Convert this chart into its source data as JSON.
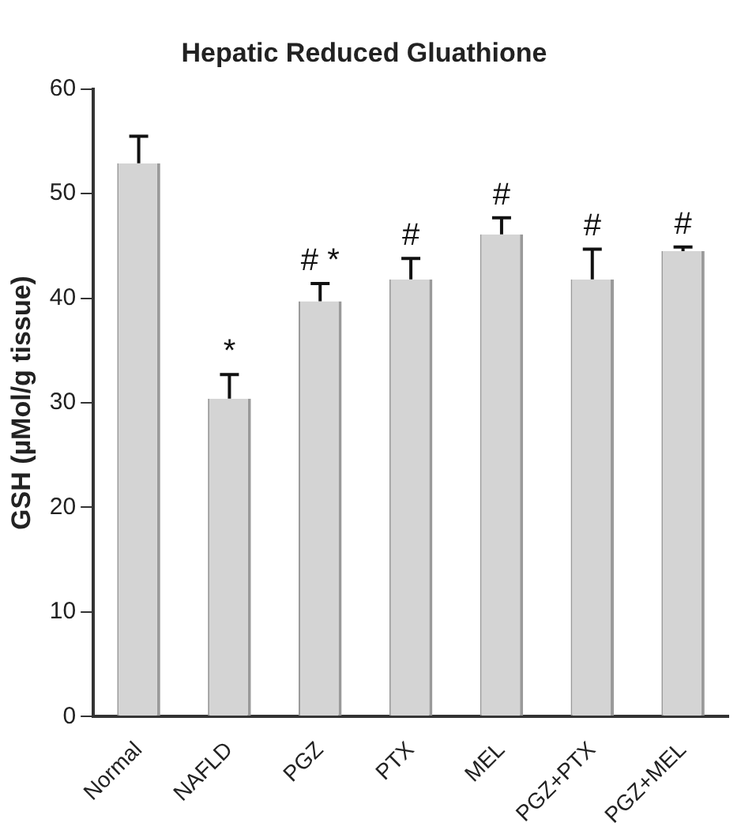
{
  "chart_data": {
    "type": "bar",
    "title": "Hepatic Reduced Gluathione",
    "ylabel": "GSH (µMol/g tissue)",
    "categories": [
      "Normal",
      "NAFLD",
      "PGZ",
      "PTX",
      "MEL",
      "PGZ+PTX",
      "PGZ+MEL"
    ],
    "values": [
      52.9,
      30.4,
      39.7,
      41.8,
      46.1,
      41.8,
      44.5
    ],
    "errors": [
      2.6,
      2.3,
      1.7,
      2,
      1.6,
      2.9,
      0.4
    ],
    "color": "#d4d4d4",
    "ylim": [
      0,
      60
    ],
    "yticks": [
      0,
      10,
      20,
      30,
      40,
      50,
      60
    ],
    "grid": false,
    "legend": false,
    "value_labels": [
      null,
      "*",
      "# *",
      "#",
      "#",
      "#",
      "#"
    ]
  }
}
